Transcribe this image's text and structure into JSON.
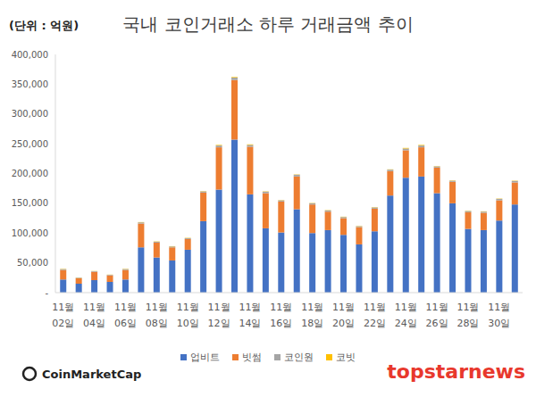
{
  "chart_data": {
    "type": "bar",
    "title": "국내 코인거래소 하루 거래금액 추이",
    "subtitle": "(단위 : 억원)",
    "annotations": [
      "CoinMarketCap",
      "topstarnews"
    ],
    "stacked": true,
    "grid": false,
    "legend": "bottom",
    "categories": [
      "11월 02일",
      null,
      "11월 04일",
      null,
      "11월 06일",
      null,
      "11월 08일",
      null,
      "11월 10일",
      null,
      "11월 12일",
      null,
      "11월 14일",
      null,
      "11월 16일",
      null,
      "11월 18일",
      null,
      "11월 20일",
      null,
      "11월 22일",
      null,
      "11월 24일",
      null,
      "11월 26일",
      null,
      "11월 28일",
      null,
      "11월 30일",
      null
    ],
    "series": [
      {
        "name": "업비트",
        "color": "#4472c4",
        "values": [
          22000,
          15000,
          21000,
          18000,
          22000,
          76000,
          59000,
          54000,
          72000,
          120000,
          173000,
          257000,
          165000,
          108000,
          101000,
          140000,
          100000,
          105000,
          97000,
          81000,
          103000,
          163000,
          193000,
          195000,
          167000,
          150000,
          107000,
          105000,
          121000,
          148000
        ]
      },
      {
        "name": "빗썸",
        "color": "#ed7d31",
        "values": [
          16000,
          9000,
          14000,
          11000,
          16000,
          40000,
          25000,
          22000,
          18000,
          48000,
          71000,
          100000,
          80000,
          59000,
          52000,
          55000,
          48000,
          31000,
          28000,
          29000,
          38000,
          41000,
          46000,
          49000,
          43000,
          36000,
          28000,
          29000,
          34000,
          37000
        ]
      },
      {
        "name": "코인원",
        "color": "#a5a5a5",
        "values": [
          1500,
          1000,
          1000,
          1000,
          1500,
          2000,
          1500,
          1500,
          1500,
          2000,
          3000,
          4000,
          3000,
          2500,
          2000,
          3000,
          2000,
          2000,
          2000,
          1500,
          2000,
          2500,
          3000,
          3000,
          2000,
          2000,
          2000,
          2000,
          2500,
          2500
        ]
      },
      {
        "name": "코빗",
        "color": "#ffc000",
        "values": [
          500,
          300,
          300,
          300,
          500,
          500,
          500,
          500,
          500,
          500,
          1000,
          1000,
          1000,
          500,
          500,
          500,
          500,
          500,
          500,
          500,
          500,
          500,
          1000,
          1000,
          500,
          500,
          500,
          500,
          500,
          500
        ]
      }
    ],
    "ylim": [
      0,
      400000
    ],
    "yticks": [
      {
        "value": 0,
        "label": "-"
      },
      {
        "value": 50000,
        "label": "50,000"
      },
      {
        "value": 100000,
        "label": "100,000"
      },
      {
        "value": 150000,
        "label": "150,000"
      },
      {
        "value": 200000,
        "label": "200,000"
      },
      {
        "value": 250000,
        "label": "250,000"
      },
      {
        "value": 300000,
        "label": "300,000"
      },
      {
        "value": 350000,
        "label": "350,000"
      },
      {
        "value": 400000,
        "label": "400,000"
      }
    ]
  }
}
